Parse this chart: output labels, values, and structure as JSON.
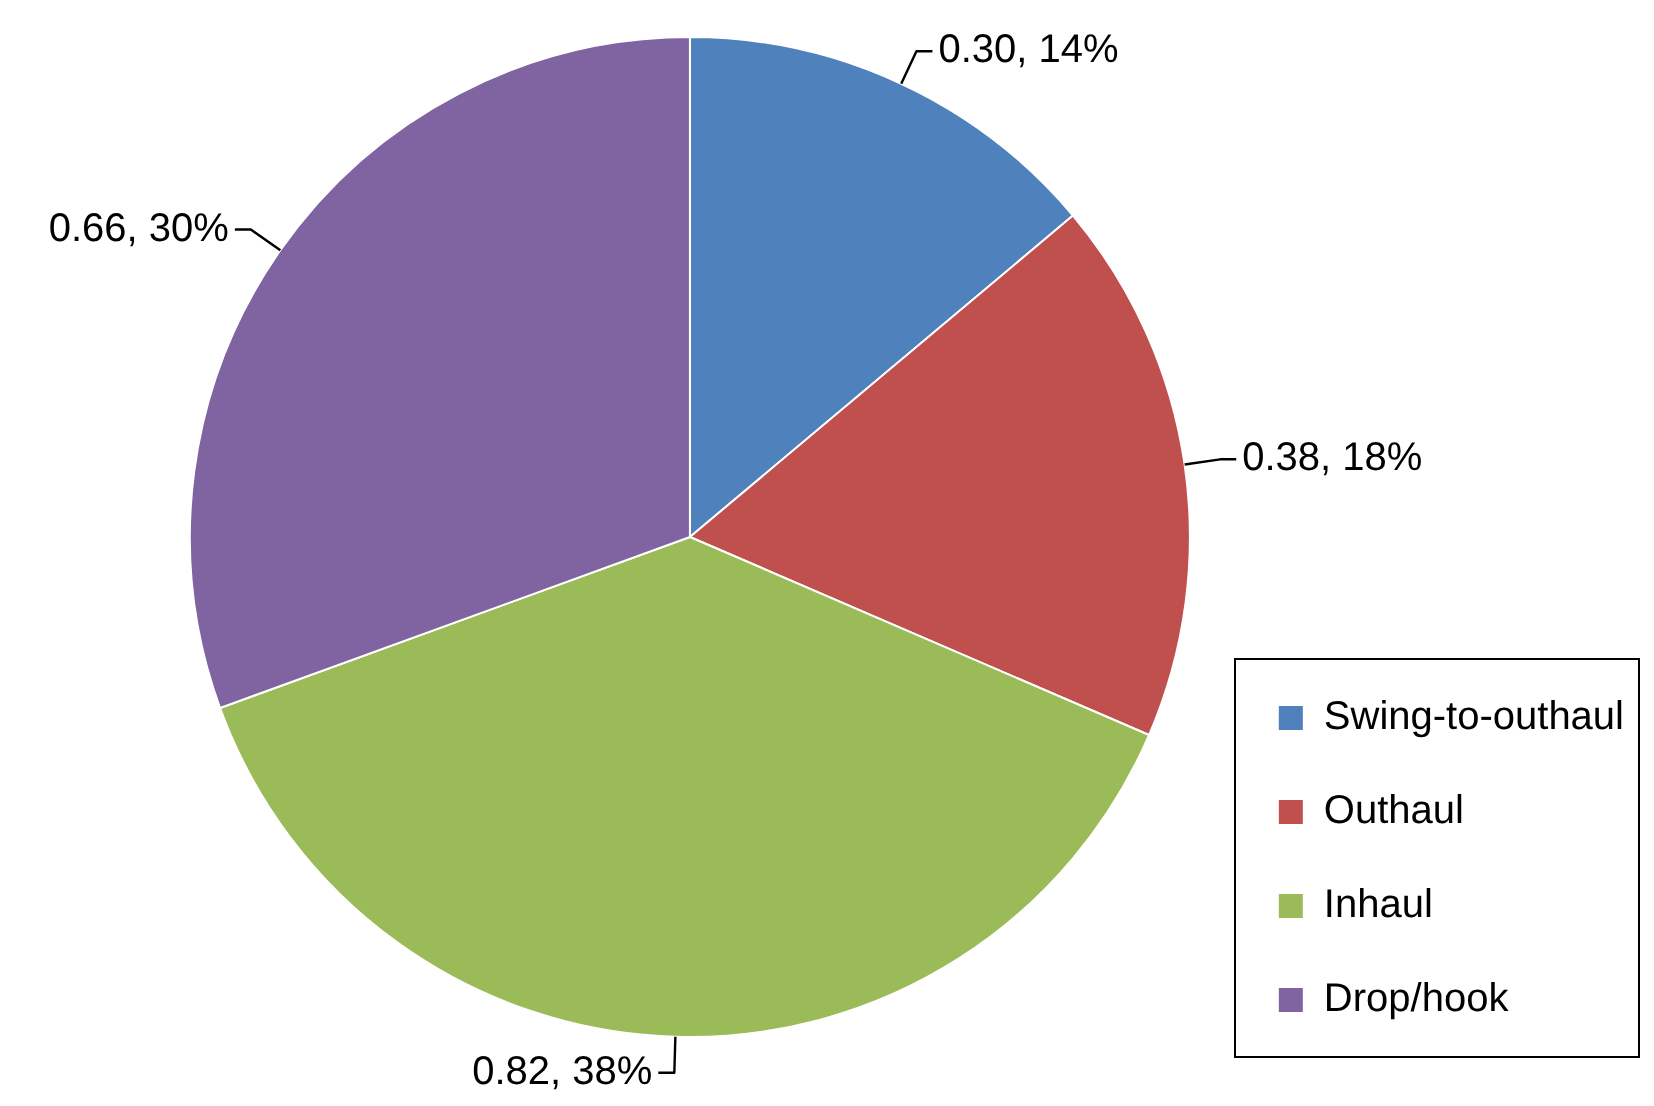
{
  "chart_data": {
    "type": "pie",
    "categories": [
      "Swing-to-outhaul",
      "Outhaul",
      "Inhaul",
      "Drop/hook"
    ],
    "values": [
      0.3,
      0.38,
      0.82,
      0.66
    ],
    "colors": [
      "#4f81bd",
      "#c0504d",
      "#9bbb59",
      "#8064a2"
    ],
    "value_labels": [
      "0.30, 14%",
      "0.38, 18%",
      "0.82, 38%",
      "0.66, 30%"
    ],
    "legend": "bottom right"
  }
}
